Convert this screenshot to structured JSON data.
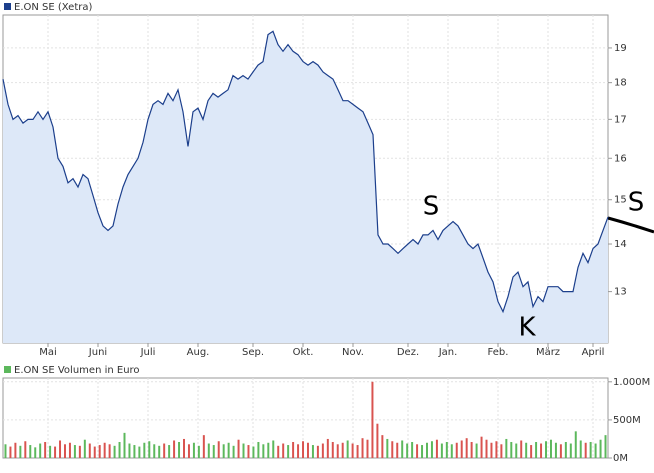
{
  "chart_data": [
    {
      "type": "area",
      "log_scale": true,
      "grid": true,
      "fill": "#dde8f8",
      "series": [
        {
          "name": "E.ON SE (Xetra)",
          "color": "#1c3f8c",
          "values": [
            18.1,
            17.4,
            17.0,
            17.1,
            16.9,
            17.0,
            17.0,
            17.2,
            17.0,
            17.2,
            16.8,
            16.0,
            15.8,
            15.4,
            15.5,
            15.3,
            15.6,
            15.5,
            15.1,
            14.7,
            14.4,
            14.3,
            14.4,
            14.9,
            15.3,
            15.6,
            15.8,
            16.0,
            16.4,
            17.0,
            17.4,
            17.5,
            17.4,
            17.7,
            17.5,
            17.8,
            17.2,
            16.3,
            17.2,
            17.3,
            17.0,
            17.5,
            17.7,
            17.6,
            17.7,
            17.8,
            18.2,
            18.1,
            18.2,
            18.1,
            18.3,
            18.5,
            18.6,
            19.4,
            19.5,
            19.1,
            18.9,
            19.1,
            18.9,
            18.8,
            18.6,
            18.5,
            18.6,
            18.5,
            18.3,
            18.2,
            18.1,
            17.8,
            17.5,
            17.5,
            17.4,
            17.3,
            17.2,
            16.9,
            16.6,
            14.2,
            14.0,
            14.0,
            13.9,
            13.8,
            13.9,
            14.0,
            14.1,
            14.0,
            14.2,
            14.2,
            14.3,
            14.1,
            14.3,
            14.4,
            14.5,
            14.4,
            14.2,
            14.0,
            13.9,
            14.0,
            13.7,
            13.4,
            13.2,
            12.8,
            12.6,
            12.9,
            13.3,
            13.4,
            13.1,
            13.2,
            12.7,
            12.9,
            12.8,
            13.1,
            13.1,
            13.1,
            13.0,
            13.0,
            13.0,
            13.5,
            13.8,
            13.6,
            13.9,
            14.0,
            14.3,
            14.6
          ]
        }
      ],
      "xlim": [
        0,
        121
      ],
      "xticks": [
        {
          "value": 9,
          "label": "Mai"
        },
        {
          "value": 19,
          "label": "Juni"
        },
        {
          "value": 29,
          "label": "Juli"
        },
        {
          "value": 39,
          "label": "Aug."
        },
        {
          "value": 50,
          "label": "Sep."
        },
        {
          "value": 60,
          "label": "Okt."
        },
        {
          "value": 70,
          "label": "Nov."
        },
        {
          "value": 81,
          "label": "Dez."
        },
        {
          "value": 89,
          "label": "Jan."
        },
        {
          "value": 99,
          "label": "Feb."
        },
        {
          "value": 109,
          "label": "März"
        },
        {
          "value": 118,
          "label": "April"
        }
      ],
      "ylim": [
        12,
        20
      ],
      "yticks": [
        13,
        14,
        15,
        16,
        17,
        18,
        19
      ],
      "annotations": [
        "S",
        "K",
        "S"
      ]
    },
    {
      "type": "bar",
      "grid": true,
      "up_color": "#5cb85c",
      "down_color": "#d9534f",
      "series": [
        {
          "name": "E.ON SE Volumen in Euro",
          "color": "#5cb85c",
          "values": [
            180,
            150,
            200,
            160,
            220,
            170,
            140,
            190,
            210,
            160,
            150,
            230,
            180,
            200,
            170,
            160,
            240,
            190,
            150,
            170,
            200,
            180,
            160,
            210,
            330,
            190,
            170,
            150,
            200,
            220,
            180,
            160,
            190,
            170,
            230,
            210,
            250,
            180,
            200,
            160,
            300,
            190,
            170,
            220,
            180,
            200,
            160,
            240,
            190,
            170,
            150,
            210,
            180,
            200,
            230,
            160,
            190,
            170,
            210,
            180,
            220,
            200,
            170,
            160,
            190,
            250,
            210,
            180,
            200,
            230,
            190,
            170,
            260,
            240,
            1000,
            450,
            300,
            250,
            220,
            200,
            230,
            190,
            210,
            180,
            170,
            200,
            220,
            240,
            190,
            210,
            180,
            200,
            230,
            260,
            210,
            190,
            280,
            240,
            200,
            220,
            180,
            250,
            210,
            190,
            230,
            200,
            170,
            210,
            190,
            220,
            240,
            200,
            180,
            210,
            190,
            350,
            230,
            200,
            210,
            190,
            240,
            300
          ]
        }
      ],
      "ylim": [
        0,
        1050
      ],
      "yticks": [
        {
          "value": 0,
          "label": "0M"
        },
        {
          "value": 500,
          "label": "500M"
        },
        {
          "value": 1000,
          "label": "1.000M"
        }
      ]
    }
  ]
}
